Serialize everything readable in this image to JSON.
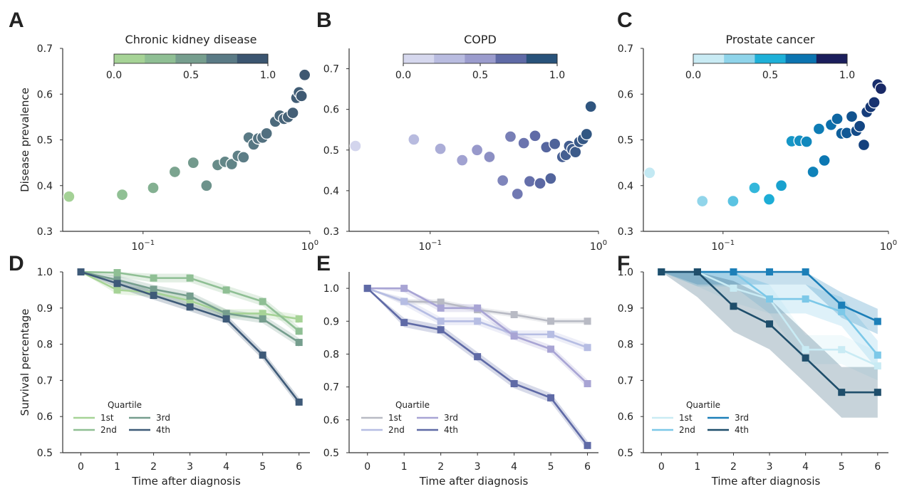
{
  "panels": [
    {
      "letter": "A",
      "title": "Chronic kidney disease"
    },
    {
      "letter": "B",
      "title": "COPD"
    },
    {
      "letter": "C",
      "title": "Prostate cancer"
    },
    {
      "letter": "D",
      "title": ""
    },
    {
      "letter": "E",
      "title": ""
    },
    {
      "letter": "F",
      "title": ""
    }
  ],
  "colorbar_ticks": [
    "0.0",
    "0.5",
    "1.0"
  ],
  "legend": {
    "title": "Quartile",
    "labels": [
      "1st",
      "2nd",
      "3rd",
      "4th"
    ]
  },
  "chart_data": [
    {
      "type": "scatter",
      "title": "Chronic kidney disease",
      "xlabel": "",
      "ylabel": "Disease prevalence",
      "xscale": "log",
      "xlim": [
        0.033,
        1.0
      ],
      "ylim": [
        0.3,
        0.7
      ],
      "x_ticks": [
        {
          "value": 0.1,
          "base": "10",
          "exp": "−1"
        },
        {
          "value": 1.0,
          "base": "10",
          "exp": "0"
        }
      ],
      "y_ticks": [
        "0.3",
        "0.4",
        "0.5",
        "0.6",
        "0.7"
      ],
      "colorbar": {
        "min": 0,
        "max": 1,
        "colors": [
          "#a6d396",
          "#8fbf94",
          "#769e8e",
          "#5a7a85",
          "#3b5570"
        ]
      },
      "points": [
        {
          "x": 0.036,
          "y": 0.376
        },
        {
          "x": 0.075,
          "y": 0.38
        },
        {
          "x": 0.115,
          "y": 0.395
        },
        {
          "x": 0.155,
          "y": 0.43
        },
        {
          "x": 0.2,
          "y": 0.45
        },
        {
          "x": 0.24,
          "y": 0.4
        },
        {
          "x": 0.28,
          "y": 0.445
        },
        {
          "x": 0.31,
          "y": 0.452
        },
        {
          "x": 0.34,
          "y": 0.447
        },
        {
          "x": 0.37,
          "y": 0.465
        },
        {
          "x": 0.4,
          "y": 0.462
        },
        {
          "x": 0.43,
          "y": 0.505
        },
        {
          "x": 0.46,
          "y": 0.49
        },
        {
          "x": 0.49,
          "y": 0.503
        },
        {
          "x": 0.52,
          "y": 0.505
        },
        {
          "x": 0.55,
          "y": 0.514
        },
        {
          "x": 0.62,
          "y": 0.54
        },
        {
          "x": 0.66,
          "y": 0.553
        },
        {
          "x": 0.7,
          "y": 0.546
        },
        {
          "x": 0.74,
          "y": 0.55
        },
        {
          "x": 0.79,
          "y": 0.559
        },
        {
          "x": 0.83,
          "y": 0.592
        },
        {
          "x": 0.86,
          "y": 0.604
        },
        {
          "x": 0.89,
          "y": 0.596
        },
        {
          "x": 0.93,
          "y": 0.642
        }
      ]
    },
    {
      "type": "scatter",
      "title": "COPD",
      "xlabel": "",
      "ylabel": "",
      "xscale": "log",
      "xlim": [
        0.033,
        1.0
      ],
      "ylim": [
        0.3,
        0.75
      ],
      "x_ticks": [
        {
          "value": 0.1,
          "base": "10",
          "exp": "−1"
        },
        {
          "value": 1.0,
          "base": "10",
          "exp": "0"
        }
      ],
      "y_ticks": [
        "0.3",
        "0.4",
        "0.5",
        "0.6",
        "0.7"
      ],
      "colorbar": {
        "min": 0,
        "max": 1,
        "colors": [
          "#d6d8ee",
          "#b9bce0",
          "#9b9ccd",
          "#5f6aa6",
          "#28527a"
        ]
      },
      "points": [
        {
          "x": 0.036,
          "y": 0.51
        },
        {
          "x": 0.08,
          "y": 0.526
        },
        {
          "x": 0.115,
          "y": 0.503
        },
        {
          "x": 0.155,
          "y": 0.475
        },
        {
          "x": 0.19,
          "y": 0.5
        },
        {
          "x": 0.225,
          "y": 0.483
        },
        {
          "x": 0.27,
          "y": 0.425
        },
        {
          "x": 0.3,
          "y": 0.533
        },
        {
          "x": 0.33,
          "y": 0.392
        },
        {
          "x": 0.36,
          "y": 0.517
        },
        {
          "x": 0.39,
          "y": 0.423
        },
        {
          "x": 0.42,
          "y": 0.535
        },
        {
          "x": 0.45,
          "y": 0.418
        },
        {
          "x": 0.49,
          "y": 0.507
        },
        {
          "x": 0.52,
          "y": 0.43
        },
        {
          "x": 0.55,
          "y": 0.515
        },
        {
          "x": 0.61,
          "y": 0.483
        },
        {
          "x": 0.64,
          "y": 0.488
        },
        {
          "x": 0.67,
          "y": 0.51
        },
        {
          "x": 0.7,
          "y": 0.502
        },
        {
          "x": 0.73,
          "y": 0.495
        },
        {
          "x": 0.77,
          "y": 0.52
        },
        {
          "x": 0.81,
          "y": 0.527
        },
        {
          "x": 0.85,
          "y": 0.539
        },
        {
          "x": 0.9,
          "y": 0.607
        }
      ]
    },
    {
      "type": "scatter",
      "title": "Prostate cancer",
      "xlabel": "",
      "ylabel": "",
      "xscale": "log",
      "xlim": [
        0.033,
        1.0
      ],
      "ylim": [
        0.3,
        0.7
      ],
      "x_ticks": [
        {
          "value": 0.1,
          "base": "10",
          "exp": "−1"
        },
        {
          "value": 1.0,
          "base": "10",
          "exp": "0"
        }
      ],
      "y_ticks": [
        "0.3",
        "0.4",
        "0.5",
        "0.6",
        "0.7"
      ],
      "colorbar": {
        "min": 0,
        "max": 1,
        "colors": [
          "#c9ebf4",
          "#8fd4ea",
          "#1eb0d8",
          "#0b74b0",
          "#1b1e5c"
        ]
      },
      "points": [
        {
          "x": 0.036,
          "y": 0.428
        },
        {
          "x": 0.075,
          "y": 0.366
        },
        {
          "x": 0.115,
          "y": 0.366
        },
        {
          "x": 0.155,
          "y": 0.395
        },
        {
          "x": 0.19,
          "y": 0.37
        },
        {
          "x": 0.225,
          "y": 0.4
        },
        {
          "x": 0.26,
          "y": 0.497
        },
        {
          "x": 0.29,
          "y": 0.498
        },
        {
          "x": 0.32,
          "y": 0.496
        },
        {
          "x": 0.35,
          "y": 0.43
        },
        {
          "x": 0.38,
          "y": 0.524
        },
        {
          "x": 0.41,
          "y": 0.455
        },
        {
          "x": 0.45,
          "y": 0.533
        },
        {
          "x": 0.49,
          "y": 0.546
        },
        {
          "x": 0.52,
          "y": 0.514
        },
        {
          "x": 0.56,
          "y": 0.515
        },
        {
          "x": 0.6,
          "y": 0.551
        },
        {
          "x": 0.64,
          "y": 0.52
        },
        {
          "x": 0.67,
          "y": 0.53
        },
        {
          "x": 0.71,
          "y": 0.489
        },
        {
          "x": 0.74,
          "y": 0.561
        },
        {
          "x": 0.78,
          "y": 0.572
        },
        {
          "x": 0.82,
          "y": 0.582
        },
        {
          "x": 0.86,
          "y": 0.621
        },
        {
          "x": 0.9,
          "y": 0.612
        }
      ]
    },
    {
      "type": "line",
      "xlabel": "Time after diagnosis",
      "ylabel": "Survival percentage",
      "x": [
        0,
        1,
        2,
        3,
        4,
        5,
        6
      ],
      "xlim": [
        -0.5,
        6.3
      ],
      "ylim": [
        0.5,
        1.0
      ],
      "y_ticks": [
        "0.5",
        "0.6",
        "0.7",
        "0.8",
        "0.9",
        "1.0"
      ],
      "legend_title": "Quartile",
      "legend_placement": "lower-left",
      "series": [
        {
          "name": "1st",
          "color": "#a6d396",
          "values": [
            1.0,
            0.95,
            0.943,
            0.92,
            0.885,
            0.885,
            0.87
          ],
          "band": 0.012
        },
        {
          "name": "2nd",
          "color": "#8fbf94",
          "values": [
            1.0,
            0.998,
            0.983,
            0.983,
            0.95,
            0.918,
            0.836
          ],
          "band": 0.012
        },
        {
          "name": "3rd",
          "color": "#769e8e",
          "values": [
            1.0,
            0.978,
            0.952,
            0.933,
            0.885,
            0.87,
            0.805
          ],
          "band": 0.012
        },
        {
          "name": "4th",
          "color": "#3e5a78",
          "values": [
            1.0,
            0.968,
            0.935,
            0.903,
            0.87,
            0.77,
            0.64
          ],
          "band": 0.012
        }
      ]
    },
    {
      "type": "line",
      "xlabel": "Time after diagnosis",
      "ylabel": "",
      "x": [
        0,
        1,
        2,
        3,
        4,
        5,
        6
      ],
      "xlim": [
        -0.5,
        6.3
      ],
      "ylim": [
        0.5,
        1.05
      ],
      "y_ticks": [
        "0.5",
        "0.6",
        "0.7",
        "0.8",
        "0.9",
        "1.0"
      ],
      "legend_title": "Quartile",
      "legend_placement": "lower-left",
      "series": [
        {
          "name": "1st",
          "color": "#b8bac4",
          "values": [
            1.0,
            0.96,
            0.958,
            0.935,
            0.92,
            0.9,
            0.9
          ],
          "band": 0.008
        },
        {
          "name": "2nd",
          "color": "#b6bde3",
          "values": [
            1.0,
            0.96,
            0.9,
            0.9,
            0.86,
            0.86,
            0.82
          ],
          "band": 0.012
        },
        {
          "name": "3rd",
          "color": "#a8a4d4",
          "values": [
            1.0,
            1.0,
            0.94,
            0.94,
            0.855,
            0.815,
            0.71
          ],
          "band": 0.012
        },
        {
          "name": "4th",
          "color": "#5f6aa6",
          "values": [
            1.0,
            0.896,
            0.874,
            0.792,
            0.71,
            0.667,
            0.522
          ],
          "band": 0.014
        }
      ]
    },
    {
      "type": "line",
      "xlabel": "Time after diagnosis",
      "ylabel": "",
      "x": [
        0,
        1,
        2,
        3,
        4,
        5,
        6
      ],
      "xlim": [
        -0.5,
        6.3
      ],
      "ylim": [
        0.5,
        1.0
      ],
      "y_ticks": [
        "0.5",
        "0.6",
        "0.7",
        "0.8",
        "0.9",
        "1.0"
      ],
      "legend_title": "Quartile",
      "legend_placement": "lower-left",
      "series": [
        {
          "name": "1st",
          "color": "#c9ebf4",
          "values": [
            1.0,
            1.0,
            0.955,
            0.925,
            0.785,
            0.785,
            0.74
          ],
          "band": 0.04
        },
        {
          "name": "2nd",
          "color": "#7cc8e8",
          "values": [
            1.0,
            1.0,
            1.0,
            0.925,
            0.925,
            0.89,
            0.77
          ],
          "band": 0.04
        },
        {
          "name": "3rd",
          "color": "#1c7fb8",
          "values": [
            1.0,
            1.0,
            1.0,
            1.0,
            1.0,
            0.908,
            0.863
          ],
          "band": 0.035
        },
        {
          "name": "4th",
          "color": "#1f4e6b",
          "values": [
            1.0,
            1.0,
            0.905,
            0.856,
            0.762,
            0.667,
            0.667
          ],
          "band": 0.07
        }
      ]
    }
  ]
}
